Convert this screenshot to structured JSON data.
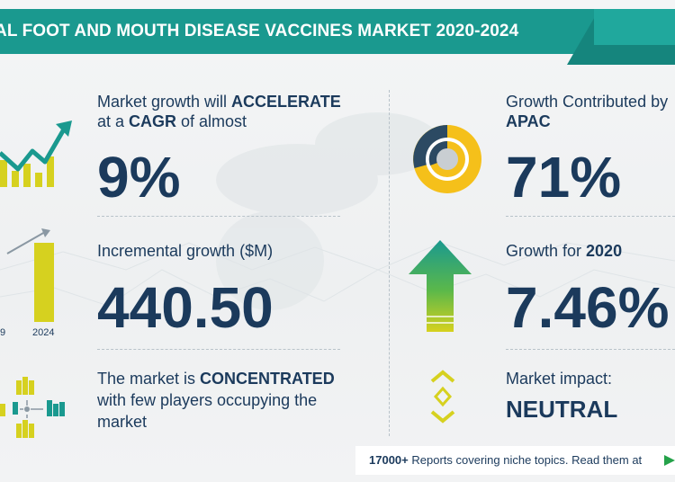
{
  "title": "AL FOOT AND MOUTH DISEASE VACCINES MARKET 2020-2024",
  "growth": {
    "line1_prefix": "Market growth will ",
    "line1_bold": "ACCELERATE",
    "line2_prefix": "at a ",
    "line2_bold": "CAGR",
    "line2_suffix": " of almost",
    "value": "9%"
  },
  "incremental": {
    "label": "Incremental growth ($M)",
    "value": "440.50",
    "year_left": "9",
    "year_right": "2024"
  },
  "concentration": {
    "line1_prefix": "The market is ",
    "line1_bold": "CONCENTRATED",
    "line2": "with few players occupying the",
    "line3": "market"
  },
  "apac": {
    "line1": "Growth Contributed by",
    "line2": "APAC",
    "value": "71%"
  },
  "yoy": {
    "label_prefix": "Growth for ",
    "label_bold": "2020",
    "value": "7.46%"
  },
  "impact": {
    "label": "Market impact:",
    "value": "NEUTRAL"
  },
  "footer": {
    "count": "17000+",
    "text": " Reports covering niche topics. Read them at"
  },
  "colors": {
    "teal": "#1a998f",
    "navy": "#1b3a5c",
    "yellow": "#d6d11f",
    "green": "#25a24a",
    "gold": "#f5c01a"
  }
}
